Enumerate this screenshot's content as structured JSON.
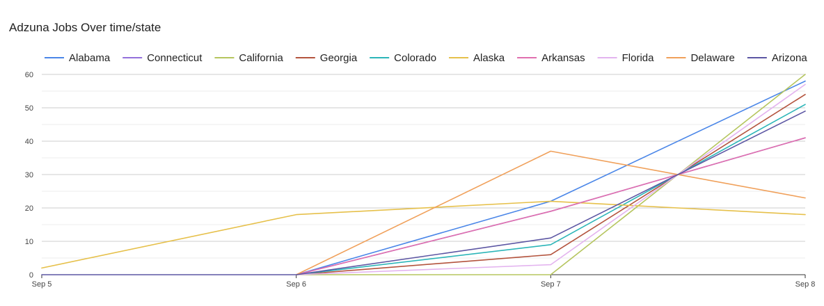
{
  "chart_data": {
    "type": "line",
    "title": "Adzuna Jobs Over time/state",
    "xlabel": "",
    "ylabel": "",
    "categories": [
      "Sep 5",
      "Sep 6",
      "Sep 7",
      "Sep 8"
    ],
    "x_range": [
      0,
      3
    ],
    "ylim": [
      0,
      60
    ],
    "y_ticks": [
      0,
      10,
      20,
      30,
      40,
      50,
      60
    ],
    "grid": true,
    "legend_position": "top",
    "series": [
      {
        "name": "Alabama",
        "color": "#4a86e8",
        "values": [
          null,
          0,
          22,
          58
        ]
      },
      {
        "name": "Connecticut",
        "color": "#9370db",
        "values": [
          null,
          0,
          19,
          41
        ]
      },
      {
        "name": "California",
        "color": "#b5c55e",
        "values": [
          null,
          0,
          0,
          60
        ]
      },
      {
        "name": "Georgia",
        "color": "#b3533d",
        "values": [
          null,
          0,
          6,
          54
        ]
      },
      {
        "name": "Colorado",
        "color": "#2bb5b8",
        "values": [
          null,
          0,
          9,
          51
        ]
      },
      {
        "name": "Alaska",
        "color": "#e6c04a",
        "values": [
          2,
          18,
          22,
          18
        ]
      },
      {
        "name": "Arkansas",
        "color": "#e06fae",
        "values": [
          null,
          0,
          19,
          41
        ]
      },
      {
        "name": "Florida",
        "color": "#e3b3ef",
        "values": [
          null,
          0,
          3,
          57
        ]
      },
      {
        "name": "Delaware",
        "color": "#f0a05a",
        "values": [
          null,
          0,
          37,
          23
        ]
      },
      {
        "name": "Arizona",
        "color": "#5c56a3",
        "values": [
          0,
          0,
          11,
          49
        ]
      }
    ]
  }
}
